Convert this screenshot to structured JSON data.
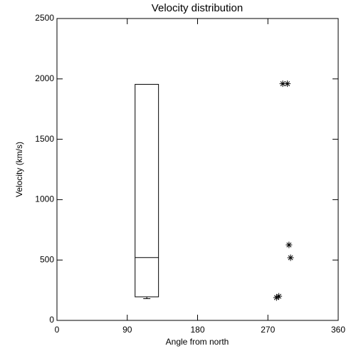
{
  "chart_data": {
    "type": "box",
    "title": "Velocity distribution",
    "x_label": "Angle from north",
    "y_label": "Velocity (km/s)",
    "xlim": [
      0,
      360
    ],
    "xticks": [
      0,
      90,
      180,
      270,
      360
    ],
    "ylim": [
      0,
      2500
    ],
    "yticks": [
      0,
      500,
      1000,
      1500,
      2000,
      2500
    ],
    "color": "#000000",
    "boxes": [
      {
        "x": [
          100,
          130
        ],
        "min": 180,
        "q1": 195,
        "median": 520,
        "q3": 1955
      }
    ],
    "points": {
      "x": [
        281,
        284,
        289,
        295,
        297,
        299
      ],
      "y": [
        189,
        200,
        1960,
        1960,
        625,
        519
      ]
    }
  }
}
